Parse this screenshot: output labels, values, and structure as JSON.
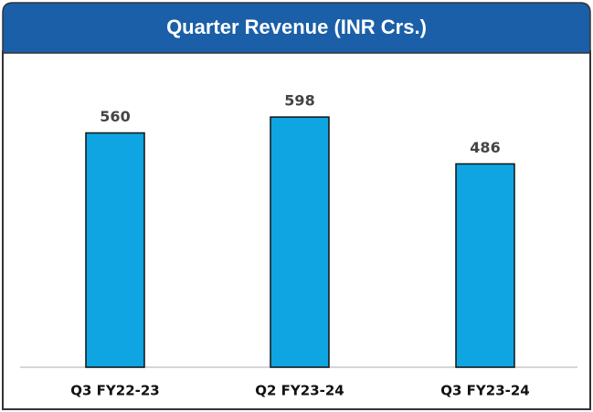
{
  "chart_data": {
    "type": "bar",
    "title": "Quarter Revenue (INR Crs.)",
    "categories": [
      "Q3 FY22-23",
      "Q2 FY23-24",
      "Q3 FY23-24"
    ],
    "values": [
      560,
      598,
      486
    ],
    "color": "#0ea5e2"
  }
}
